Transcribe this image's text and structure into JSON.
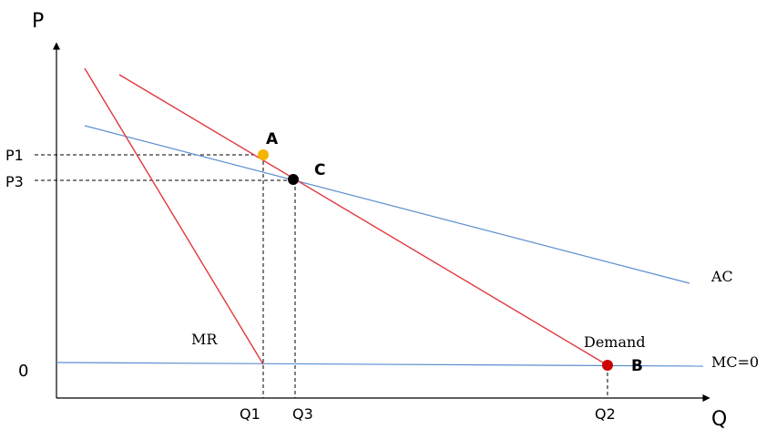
{
  "axes": {
    "y_label": "P",
    "x_label": "Q",
    "origin_label": "0"
  },
  "price_ticks": {
    "p1": "P1",
    "p3": "P3"
  },
  "quantity_ticks": {
    "q1": "Q1",
    "q3": "Q3",
    "q2": "Q2"
  },
  "curves": {
    "mr": "MR",
    "demand": "Demand",
    "ac": "AC",
    "mc": "MC=0"
  },
  "points": {
    "a": "A",
    "c": "C",
    "b": "B"
  },
  "colors": {
    "red_curve": "#e0393e",
    "blue_curve": "#5b8fd0",
    "point_a": "#f5b400",
    "point_c": "#000000",
    "point_b": "#cc0000"
  }
}
